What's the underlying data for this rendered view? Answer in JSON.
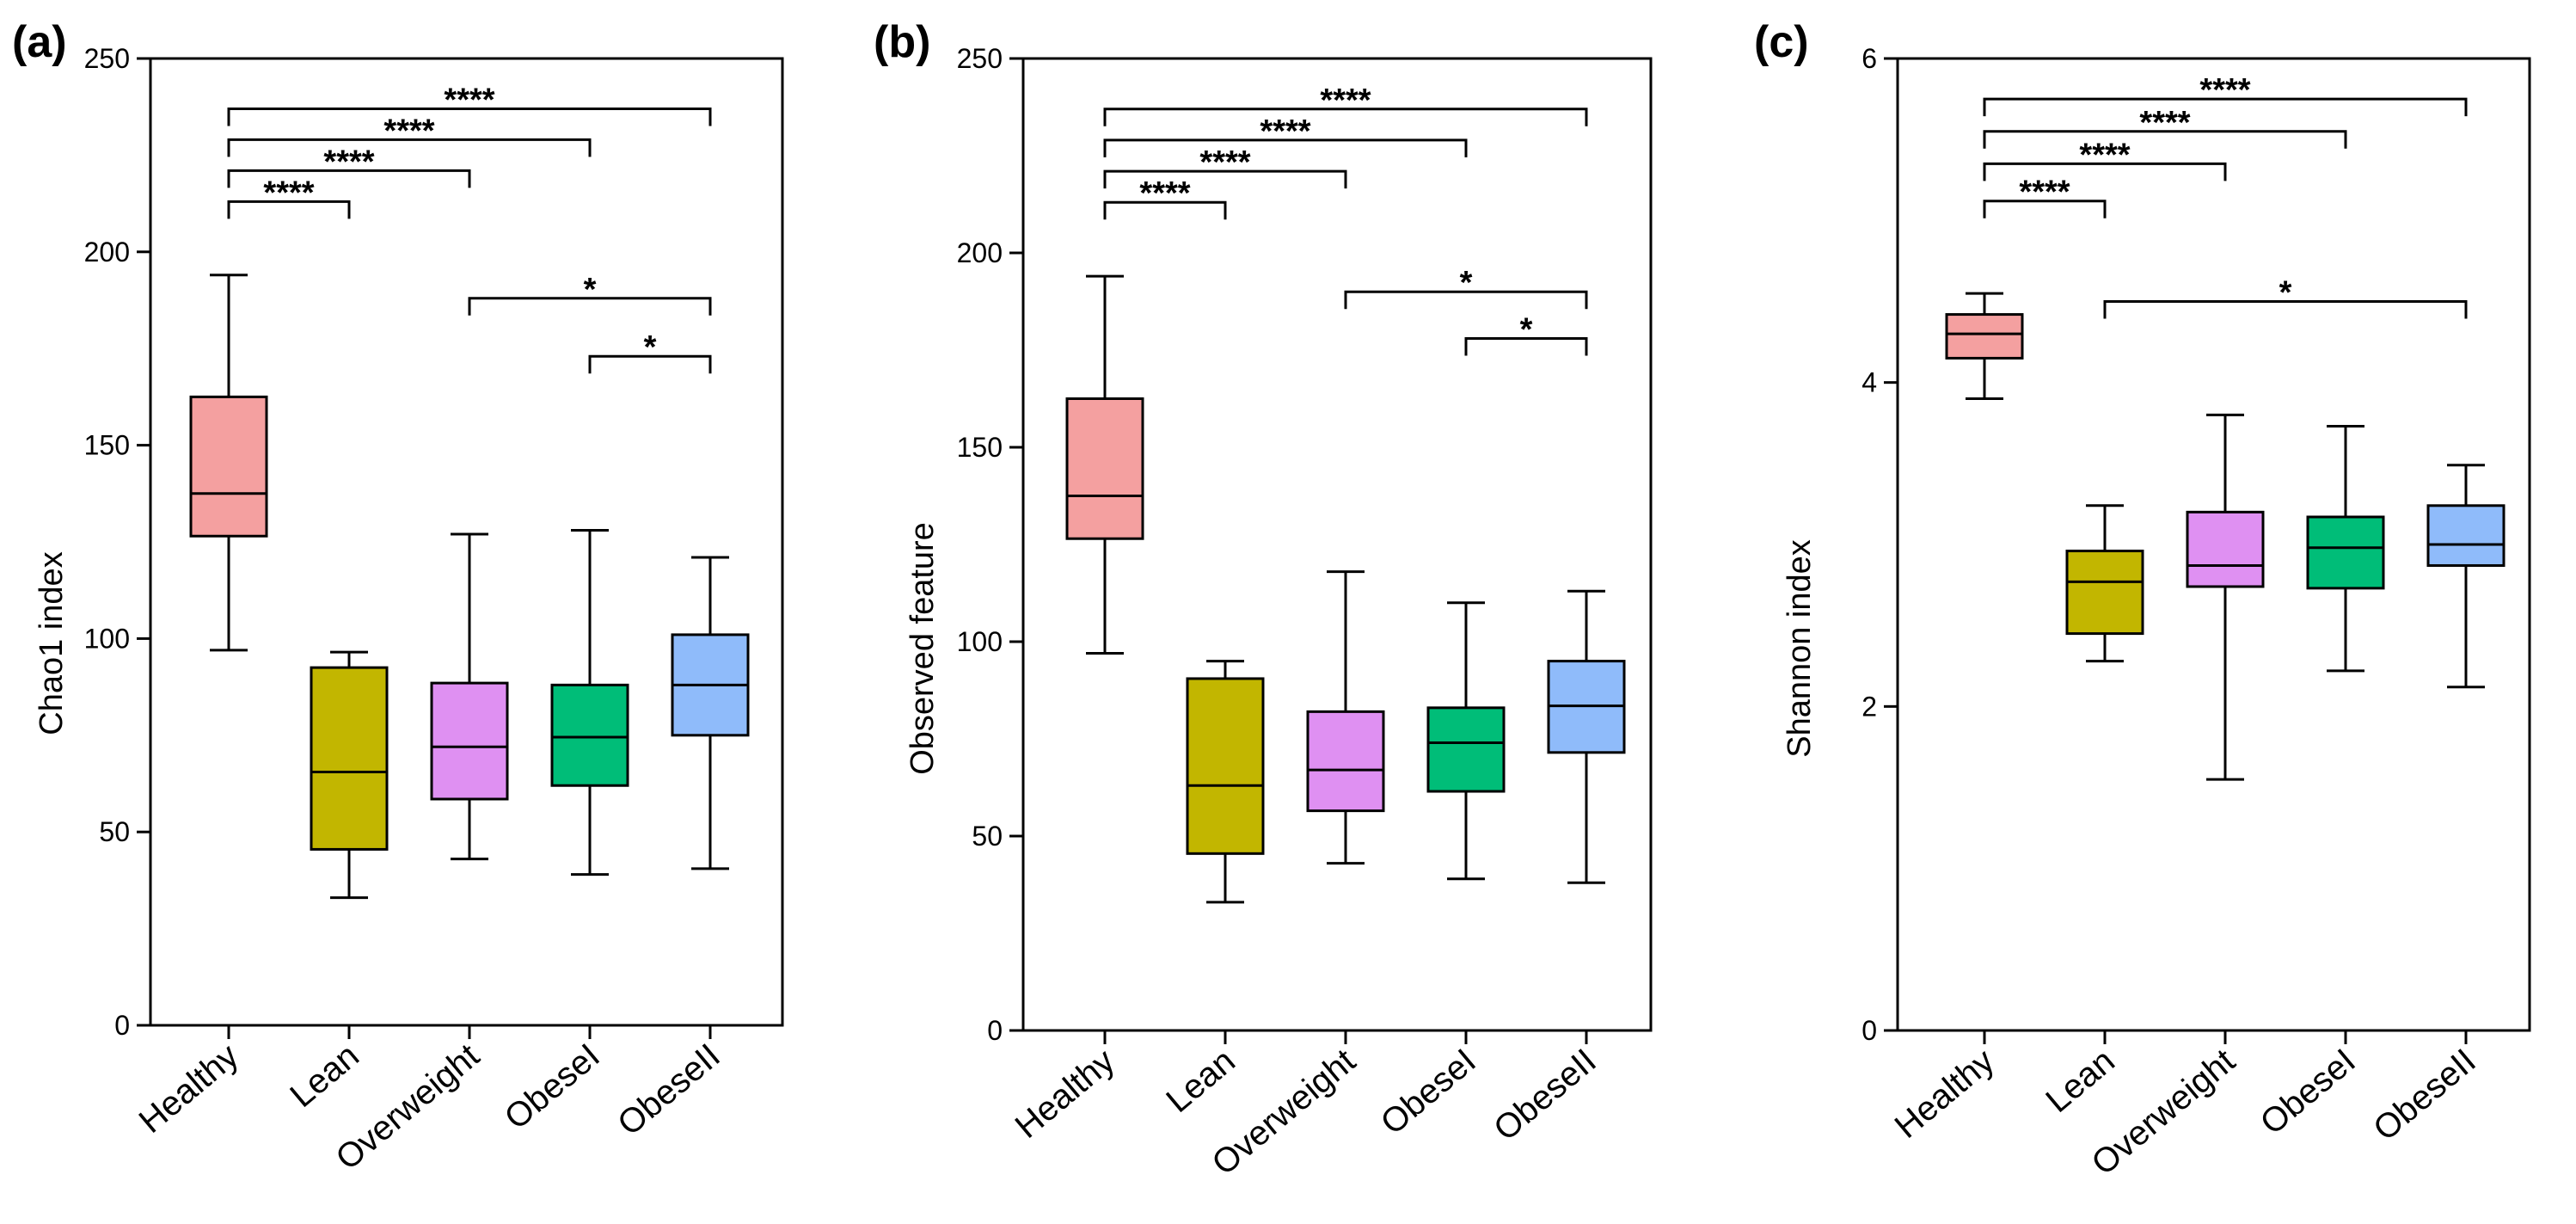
{
  "chart_data": [
    {
      "type": "box",
      "panel_label": "(a)",
      "title": "",
      "xlabel": "",
      "ylabel": "Chao1 index",
      "ylim": [
        0,
        250
      ],
      "yticks": [
        0,
        50,
        100,
        150,
        200,
        250
      ],
      "categories": [
        "Healthy",
        "Lean",
        "Overweight",
        "ObeseI",
        "ObeseII"
      ],
      "boxes": [
        {
          "group": "Healthy",
          "min": 97,
          "q1": 126.5,
          "median": 137.5,
          "q3": 162.5,
          "max": 194,
          "color": "#f4a0a0"
        },
        {
          "group": "Lean",
          "min": 33,
          "q1": 45.5,
          "median": 65.5,
          "q3": 92.5,
          "max": 96.5,
          "color": "#c2b600"
        },
        {
          "group": "Overweight",
          "min": 43,
          "q1": 58.5,
          "median": 72,
          "q3": 88.5,
          "max": 127,
          "color": "#df90f2"
        },
        {
          "group": "ObeseI",
          "min": 39,
          "q1": 62,
          "median": 74.5,
          "q3": 88,
          "max": 128,
          "color": "#00bd78"
        },
        {
          "group": "ObeseII",
          "min": 40.5,
          "q1": 75,
          "median": 88,
          "q3": 101,
          "max": 121,
          "color": "#8fbbfa"
        }
      ],
      "significance": [
        {
          "from": "Healthy",
          "to": "Lean",
          "y": 213,
          "label": "****"
        },
        {
          "from": "Healthy",
          "to": "Overweight",
          "y": 221,
          "label": "****"
        },
        {
          "from": "Healthy",
          "to": "ObeseI",
          "y": 229,
          "label": "****"
        },
        {
          "from": "Healthy",
          "to": "ObeseII",
          "y": 237,
          "label": "****"
        },
        {
          "from": "Overweight",
          "to": "ObeseII",
          "y": 188,
          "label": "*"
        },
        {
          "from": "ObeseI",
          "to": "ObeseII",
          "y": 173,
          "label": "*"
        }
      ]
    },
    {
      "type": "box",
      "panel_label": "(b)",
      "title": "",
      "xlabel": "",
      "ylabel": "Observed feature",
      "ylim": [
        0,
        250
      ],
      "yticks": [
        0,
        50,
        100,
        150,
        200,
        250
      ],
      "categories": [
        "Healthy",
        "Lean",
        "Overweight",
        "ObeseI",
        "ObeseII"
      ],
      "boxes": [
        {
          "group": "Healthy",
          "min": 97,
          "q1": 126.5,
          "median": 137.5,
          "q3": 162.5,
          "max": 194,
          "color": "#f4a0a0"
        },
        {
          "group": "Lean",
          "min": 33,
          "q1": 45.5,
          "median": 63,
          "q3": 90.5,
          "max": 95,
          "color": "#c2b600"
        },
        {
          "group": "Overweight",
          "min": 43,
          "q1": 56.5,
          "median": 67,
          "q3": 82,
          "max": 118,
          "color": "#df90f2"
        },
        {
          "group": "ObeseI",
          "min": 39,
          "q1": 61.5,
          "median": 74,
          "q3": 83,
          "max": 110,
          "color": "#00bd78"
        },
        {
          "group": "ObeseII",
          "min": 38,
          "q1": 71.5,
          "median": 83.5,
          "q3": 95,
          "max": 113,
          "color": "#8fbbfa"
        }
      ],
      "significance": [
        {
          "from": "Healthy",
          "to": "Lean",
          "y": 213,
          "label": "****"
        },
        {
          "from": "Healthy",
          "to": "Overweight",
          "y": 221,
          "label": "****"
        },
        {
          "from": "Healthy",
          "to": "ObeseI",
          "y": 229,
          "label": "****"
        },
        {
          "from": "Healthy",
          "to": "ObeseII",
          "y": 237,
          "label": "****"
        },
        {
          "from": "Overweight",
          "to": "ObeseII",
          "y": 190,
          "label": "*"
        },
        {
          "from": "ObeseI",
          "to": "ObeseII",
          "y": 178,
          "label": "*"
        }
      ]
    },
    {
      "type": "box",
      "panel_label": "(c)",
      "title": "",
      "xlabel": "",
      "ylabel": "Shannon index",
      "ylim": [
        0,
        6
      ],
      "yticks": [
        0,
        2,
        4,
        6
      ],
      "categories": [
        "Healthy",
        "Lean",
        "Overweight",
        "ObeseI",
        "ObeseII"
      ],
      "boxes": [
        {
          "group": "Healthy",
          "min": 3.9,
          "q1": 4.15,
          "median": 4.3,
          "q3": 4.42,
          "max": 4.55,
          "color": "#f4a0a0"
        },
        {
          "group": "Lean",
          "min": 2.28,
          "q1": 2.45,
          "median": 2.77,
          "q3": 2.96,
          "max": 3.24,
          "color": "#c2b600"
        },
        {
          "group": "Overweight",
          "min": 1.55,
          "q1": 2.74,
          "median": 2.87,
          "q3": 3.2,
          "max": 3.8,
          "color": "#df90f2"
        },
        {
          "group": "ObeseI",
          "min": 2.22,
          "q1": 2.73,
          "median": 2.98,
          "q3": 3.17,
          "max": 3.73,
          "color": "#00bd78"
        },
        {
          "group": "ObeseII",
          "min": 2.12,
          "q1": 2.87,
          "median": 3.0,
          "q3": 3.24,
          "max": 3.49,
          "color": "#8fbbfa"
        }
      ],
      "significance": [
        {
          "from": "Healthy",
          "to": "Lean",
          "y": 5.12,
          "label": "****"
        },
        {
          "from": "Healthy",
          "to": "Overweight",
          "y": 5.35,
          "label": "****"
        },
        {
          "from": "Healthy",
          "to": "ObeseI",
          "y": 5.55,
          "label": "****"
        },
        {
          "from": "Healthy",
          "to": "ObeseII",
          "y": 5.75,
          "label": "****"
        },
        {
          "from": "Lean",
          "to": "ObeseII",
          "y": 4.5,
          "label": "*"
        }
      ]
    }
  ]
}
